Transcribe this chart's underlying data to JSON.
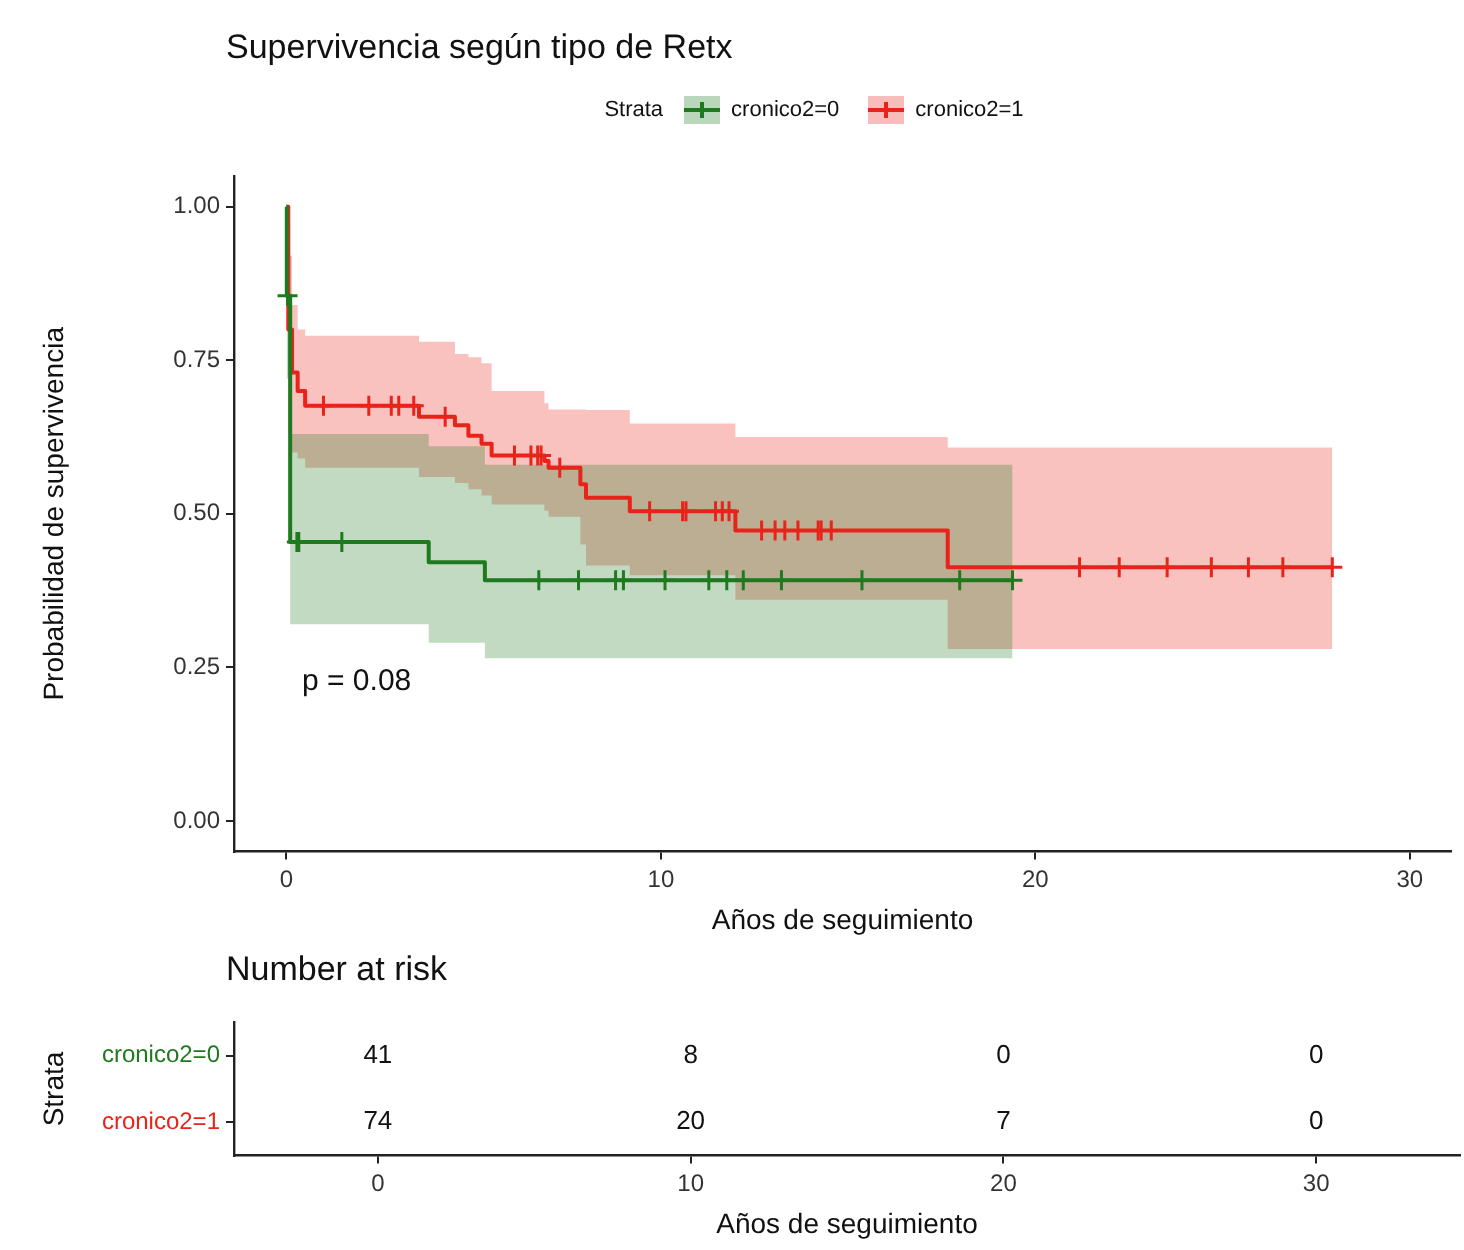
{
  "chart_data": [
    {
      "type": "step",
      "title": "Supervivencia según tipo de Retx",
      "xlabel": "Años de seguimiento",
      "ylabel": "Probabilidad de supervivencia",
      "legend_title": "Strata",
      "legend": "top",
      "grid": false,
      "marker": "cross",
      "xlim": [
        -1.4,
        31.1
      ],
      "xticks": [
        0,
        10,
        20,
        30
      ],
      "ylim": [
        -0.05,
        1.05
      ],
      "yticks": [
        {
          "value": 0,
          "label": "0.00"
        },
        {
          "value": 0.25,
          "label": "0.25"
        },
        {
          "value": 0.5,
          "label": "0.50"
        },
        {
          "value": 0.75,
          "label": "0.75"
        },
        {
          "value": 1,
          "label": "1.00"
        }
      ],
      "annotations": [
        "p = 0.08"
      ],
      "series": [
        {
          "name": "cronico2=0",
          "color": "#1f7a1f",
          "x": [
            0,
            0.01,
            0.03,
            0.1,
            0.28,
            0.33,
            1.48,
            3.8,
            5.3,
            6.74,
            7.8,
            8.79,
            9.0,
            10.11,
            11.28,
            11.76,
            12.2,
            13.22,
            15.37,
            17.98,
            19.39
          ],
          "values": [
            1,
            0.855,
            0.855,
            0.454,
            0.454,
            0.454,
            0.454,
            0.421,
            0.392,
            0.392,
            0.392,
            0.392,
            0.392,
            0.392,
            0.392,
            0.392,
            0.392,
            0.392,
            0.392,
            0.392,
            0.392
          ],
          "lower": [
            1,
            0.72,
            0.72,
            0.32,
            0.32,
            0.32,
            0.32,
            0.29,
            0.265,
            0.265,
            0.265,
            0.265,
            0.265,
            0.265,
            0.265,
            0.265,
            0.265,
            0.265,
            0.265,
            0.265,
            0.265
          ],
          "upper": [
            1,
            0.97,
            0.97,
            0.63,
            0.63,
            0.63,
            0.63,
            0.61,
            0.58,
            0.58,
            0.58,
            0.58,
            0.58,
            0.58,
            0.58,
            0.58,
            0.58,
            0.58,
            0.58,
            0.58,
            0.58
          ]
        },
        {
          "name": "cronico2=1",
          "color": "#e8231a",
          "x": [
            0,
            0.05,
            0.15,
            0.3,
            0.5,
            0.99,
            2.2,
            2.8,
            3.0,
            3.4,
            3.54,
            4.24,
            4.5,
            4.86,
            5.21,
            5.48,
            6.09,
            6.53,
            6.71,
            6.8,
            6.89,
            7.0,
            7.3,
            7.85,
            8.0,
            9.17,
            9.7,
            10.58,
            10.67,
            11.46,
            11.64,
            11.82,
            11.99,
            12.69,
            13.05,
            13.31,
            13.66,
            14.2,
            14.28,
            14.55,
            17.66,
            21.18,
            22.24,
            23.52,
            24.7,
            25.69,
            26.61,
            27.93
          ],
          "values": [
            1,
            0.8,
            0.73,
            0.7,
            0.676,
            0.676,
            0.676,
            0.676,
            0.676,
            0.676,
            0.658,
            0.658,
            0.644,
            0.627,
            0.614,
            0.595,
            0.595,
            0.595,
            0.595,
            0.595,
            0.586,
            0.575,
            0.575,
            0.548,
            0.526,
            0.504,
            0.504,
            0.504,
            0.504,
            0.504,
            0.504,
            0.504,
            0.473,
            0.473,
            0.473,
            0.473,
            0.473,
            0.473,
            0.473,
            0.473,
            0.413,
            0.413,
            0.413,
            0.413,
            0.413,
            0.413,
            0.413,
            0.413
          ],
          "lower": [
            1,
            0.63,
            0.6,
            0.59,
            0.575,
            0.575,
            0.575,
            0.575,
            0.575,
            0.575,
            0.56,
            0.56,
            0.55,
            0.54,
            0.53,
            0.515,
            0.515,
            0.515,
            0.515,
            0.515,
            0.505,
            0.495,
            0.495,
            0.45,
            0.416,
            0.4,
            0.4,
            0.4,
            0.4,
            0.4,
            0.4,
            0.4,
            0.36,
            0.36,
            0.36,
            0.36,
            0.36,
            0.36,
            0.36,
            0.36,
            0.28,
            0.28,
            0.28,
            0.28,
            0.28,
            0.28,
            0.28,
            0.28
          ],
          "upper": [
            1,
            0.92,
            0.84,
            0.8,
            0.79,
            0.79,
            0.79,
            0.79,
            0.79,
            0.79,
            0.78,
            0.78,
            0.76,
            0.755,
            0.745,
            0.7,
            0.7,
            0.7,
            0.7,
            0.7,
            0.68,
            0.67,
            0.67,
            0.67,
            0.669,
            0.647,
            0.647,
            0.647,
            0.647,
            0.647,
            0.647,
            0.647,
            0.625,
            0.625,
            0.625,
            0.625,
            0.625,
            0.625,
            0.625,
            0.625,
            0.608,
            0.608,
            0.608,
            0.608,
            0.608,
            0.608,
            0.608,
            0.608
          ]
        }
      ]
    },
    {
      "type": "heatmap",
      "title": "Number at risk",
      "xlabel": "Años de seguimiento",
      "ylabel": "Strata",
      "data_labels": true,
      "categories": [
        "0",
        "10",
        "20",
        "30"
      ],
      "y_categories": [
        "cronico2=0",
        "cronico2=1"
      ],
      "colors": [
        "#1f7a1f",
        "#e8231a"
      ],
      "cells": [
        [
          41,
          8,
          0,
          0
        ],
        [
          74,
          20,
          7,
          0
        ]
      ]
    }
  ]
}
